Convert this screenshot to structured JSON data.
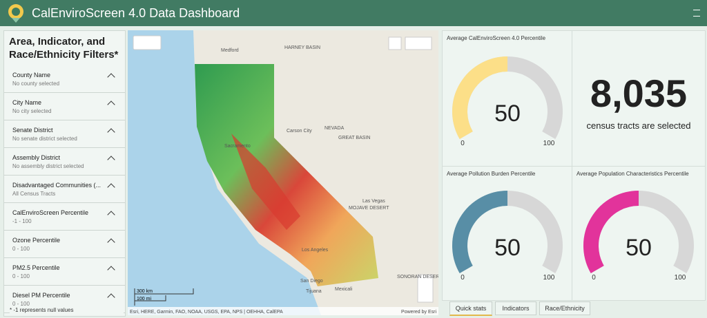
{
  "header": {
    "title": "CalEnviroScreen 4.0 Data Dashboard"
  },
  "filters": {
    "title": "Area, Indicator, and Race/Ethnicity Filters*",
    "items": [
      {
        "name": "County Name",
        "value": "No county selected"
      },
      {
        "name": "City Name",
        "value": "No city selected"
      },
      {
        "name": "Senate District",
        "value": "No senate district selected"
      },
      {
        "name": "Assembly District",
        "value": "No assembly district selected"
      },
      {
        "name": "Disadvantaged Communities (...",
        "value": "All Census Tracts"
      },
      {
        "name": "CalEnviroScreen Percentile",
        "value": "-1 - 100"
      },
      {
        "name": "Ozone Percentile",
        "value": "0 - 100"
      },
      {
        "name": "PM2.5 Percentile",
        "value": "0 - 100"
      },
      {
        "name": "Diesel PM Percentile",
        "value": "0 - 100"
      }
    ],
    "note": "* -1 represents null values"
  },
  "map": {
    "labels": [
      "Medford",
      "HARNEY BASIN",
      "Carson City",
      "NEVADA",
      "GREAT BASIN",
      "Sacramento",
      "Las Vegas",
      "MOJAVE DESERT",
      "Los Angeles",
      "San Diego",
      "Tijuana",
      "Mexicali",
      "SONORAN DESERT"
    ],
    "scale_km": "300 km",
    "scale_mi": "100 mi",
    "attribution": "Esri, HERE, Garmin, FAO, NOAA, USGS, EPA, NPS | OEHHA, CalEPA",
    "powered": "Powered by Esri"
  },
  "gauges": [
    {
      "title": "Average CalEnviroScreen 4.0 Percentile",
      "value": 50,
      "min": 0,
      "max": 100,
      "color": "#fcdf88"
    },
    {
      "title": "Average Pollution Burden Percentile",
      "value": 50,
      "min": 0,
      "max": 100,
      "color": "#588ea6"
    },
    {
      "title": "Average Population Characteristics Percentile",
      "value": 50,
      "min": 0,
      "max": 100,
      "color": "#e2339b"
    }
  ],
  "count": {
    "value": "8,035",
    "label": "census tracts are selected"
  },
  "tabs": [
    "Quick stats",
    "Indicators",
    "Race/Ethnicity"
  ]
}
